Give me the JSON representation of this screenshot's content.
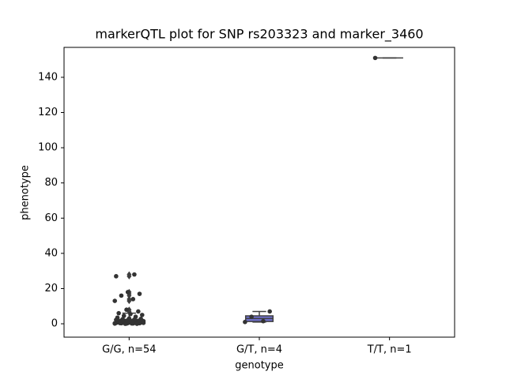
{
  "chart_data": {
    "type": "box",
    "title": "markerQTL plot for SNP rs203323 and marker_3460",
    "xlabel": "genotype",
    "ylabel": "phenotype",
    "categories": [
      "G/G, n=54",
      "G/T, n=4",
      "T/T, n=1"
    ],
    "box_color": "#7070cf",
    "line_color": "#3f3f3f",
    "point_color": "#333333",
    "boxes": [
      {
        "whislo": 0,
        "q1": 0.3,
        "med": 0.9,
        "q3": 2.5,
        "whishi": 6,
        "fliers": [
          7,
          8,
          13,
          14,
          16,
          17,
          18,
          27,
          28
        ]
      },
      {
        "whislo": 1,
        "q1": 1.3,
        "med": 3,
        "q3": 4.5,
        "whishi": 7,
        "fliers": []
      },
      {
        "whislo": 151,
        "q1": 151,
        "med": 151,
        "q3": 151,
        "whishi": 151,
        "fliers": []
      }
    ],
    "points": [
      [
        0.1,
        0.2,
        0.3,
        0.3,
        0.4,
        0.5,
        0.5,
        0.6,
        0.7,
        0.8,
        0.8,
        0.9,
        1.0,
        1.0,
        1.1,
        1.2,
        1.3,
        1.4,
        1.5,
        0.2,
        0.4,
        0.6,
        0.1,
        0.3,
        0.9,
        1.6,
        1.8,
        2.0,
        2.2,
        2.4,
        2.6,
        2.8,
        3.0,
        3.5,
        4.0,
        4.5,
        5.0,
        5.5,
        6.0,
        0.0,
        0.0,
        0.5,
        1.2,
        0.7,
        7,
        8,
        13,
        14,
        16,
        17,
        18,
        27,
        28,
        1.9
      ],
      [
        1,
        1.5,
        4,
        7
      ],
      [
        151
      ]
    ],
    "ylim": [
      -7.6,
      157
    ],
    "yticks": [
      0,
      20,
      40,
      60,
      80,
      100,
      120,
      140
    ]
  }
}
